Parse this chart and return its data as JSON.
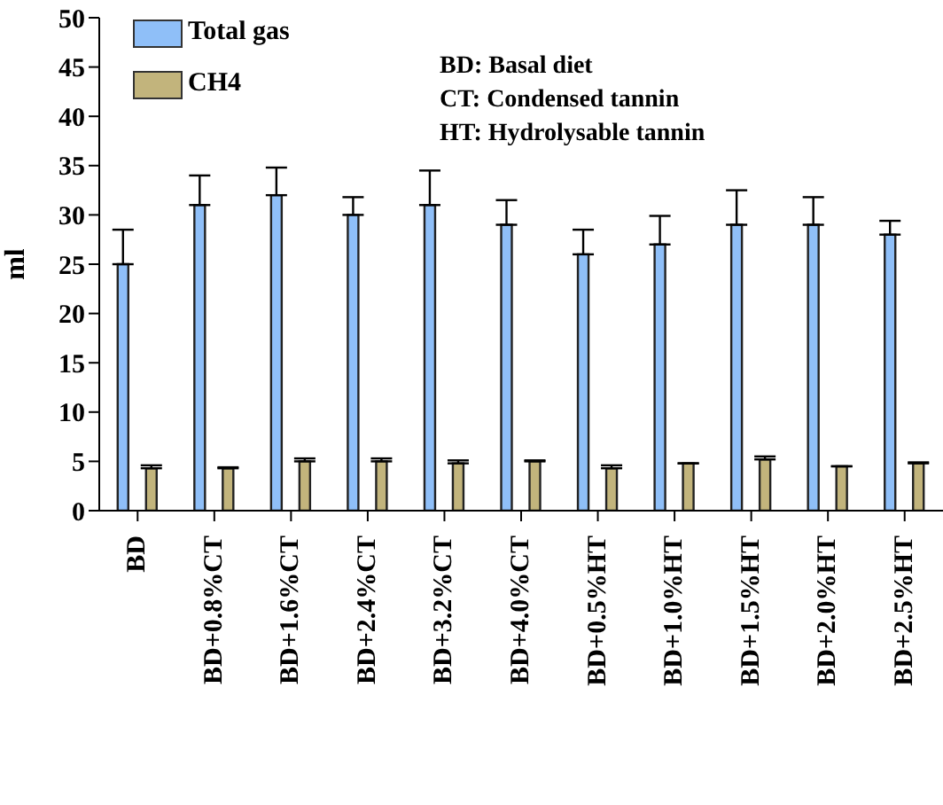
{
  "chart_data": {
    "type": "bar",
    "ylabel": "ml",
    "categories": [
      "BD",
      "BD+0.8%CT",
      "BD+1.6%CT",
      "BD+2.4%CT",
      "BD+3.2%CT",
      "BD+4.0%CT",
      "BD+0.5%HT",
      "BD+1.0%HT",
      "BD+1.5%HT",
      "BD+2.0%HT",
      "BD+2.5%HT"
    ],
    "series": [
      {
        "name": "Total gas",
        "color": "#8fbff8",
        "values": [
          25,
          31,
          32,
          30,
          31,
          29,
          26,
          27,
          29,
          29,
          28
        ],
        "errors": [
          [
            25,
            28.5
          ],
          [
            31,
            34
          ],
          [
            32,
            34.8
          ],
          [
            30,
            31.8
          ],
          [
            31,
            34.5
          ],
          [
            29,
            31.5
          ],
          [
            26,
            28.5
          ],
          [
            27,
            29.9
          ],
          [
            29,
            32.5
          ],
          [
            29,
            31.8
          ],
          [
            28,
            29.4
          ]
        ]
      },
      {
        "name": "CH4",
        "color": "#c2b47c",
        "values": [
          4.3,
          4.3,
          5,
          5,
          4.8,
          5,
          4.3,
          4.8,
          5.2,
          4.5,
          4.8
        ],
        "errors": [
          [
            4.3,
            4.6
          ],
          [
            4.3,
            4.4
          ],
          [
            5,
            5.3
          ],
          [
            5,
            5.3
          ],
          [
            4.8,
            5.1
          ],
          [
            5,
            5.1
          ],
          [
            4.3,
            4.6
          ],
          null,
          [
            5.2,
            5.5
          ],
          null,
          [
            4.8,
            4.9
          ]
        ]
      }
    ],
    "ylim": [
      0,
      50
    ],
    "yticks": [
      0,
      5,
      10,
      15,
      20,
      25,
      30,
      35,
      40,
      45,
      50
    ],
    "grid": false,
    "legend": "top left",
    "annotations": [
      "BD: Basal diet",
      "CT: Condensed tannin",
      "HT: Hydrolysable tannin"
    ]
  }
}
